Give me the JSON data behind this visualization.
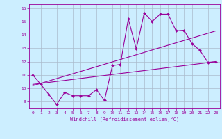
{
  "xlabel": "Windchill (Refroidissement éolien,°C)",
  "bg_color": "#cceeff",
  "line_color": "#990099",
  "grid_color": "#aabbcc",
  "xlim": [
    -0.5,
    23.5
  ],
  "ylim": [
    8.5,
    16.3
  ],
  "yticks": [
    9,
    10,
    11,
    12,
    13,
    14,
    15,
    16
  ],
  "xticks": [
    0,
    1,
    2,
    3,
    4,
    5,
    6,
    7,
    8,
    9,
    10,
    11,
    12,
    13,
    14,
    15,
    16,
    17,
    18,
    19,
    20,
    21,
    22,
    23
  ],
  "curve1_x": [
    0,
    1,
    2,
    3,
    4,
    5,
    6,
    7,
    8,
    9,
    10,
    11,
    12,
    13,
    14,
    15,
    16,
    17,
    18,
    19,
    20,
    21,
    22,
    23
  ],
  "curve1_y": [
    11.0,
    10.3,
    9.55,
    8.8,
    9.7,
    9.45,
    9.45,
    9.45,
    9.9,
    9.1,
    11.7,
    11.8,
    15.2,
    12.95,
    15.65,
    15.0,
    15.55,
    15.55,
    14.3,
    14.35,
    13.35,
    12.85,
    11.95,
    12.0
  ],
  "line1_x": [
    0,
    23
  ],
  "line1_y": [
    10.3,
    12.0
  ],
  "line2_x": [
    0,
    23
  ],
  "line2_y": [
    10.2,
    14.3
  ],
  "tick_fontsize": 4.5,
  "xlabel_fontsize": 5.0
}
